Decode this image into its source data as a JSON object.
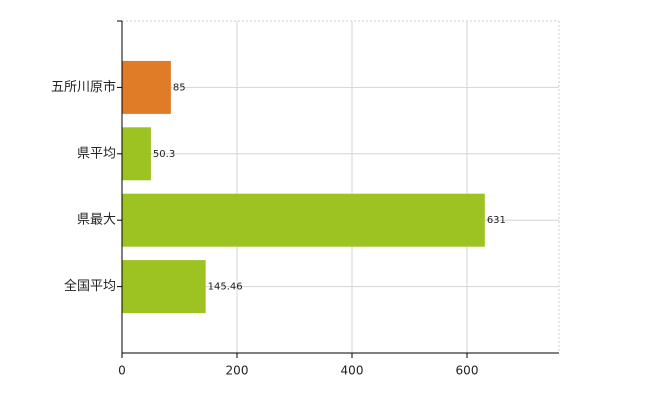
{
  "chart_data": {
    "type": "bar",
    "orientation": "horizontal",
    "categories": [
      "五所川原市",
      "県平均",
      "県最大",
      "全国平均"
    ],
    "values": [
      85,
      50.3,
      631,
      145.46
    ],
    "colors": [
      "#e07b28",
      "#9dc323",
      "#9dc323",
      "#9dc323"
    ],
    "xlim": [
      0,
      760
    ],
    "xticks": [
      0,
      200,
      400,
      600
    ],
    "grid": true
  }
}
